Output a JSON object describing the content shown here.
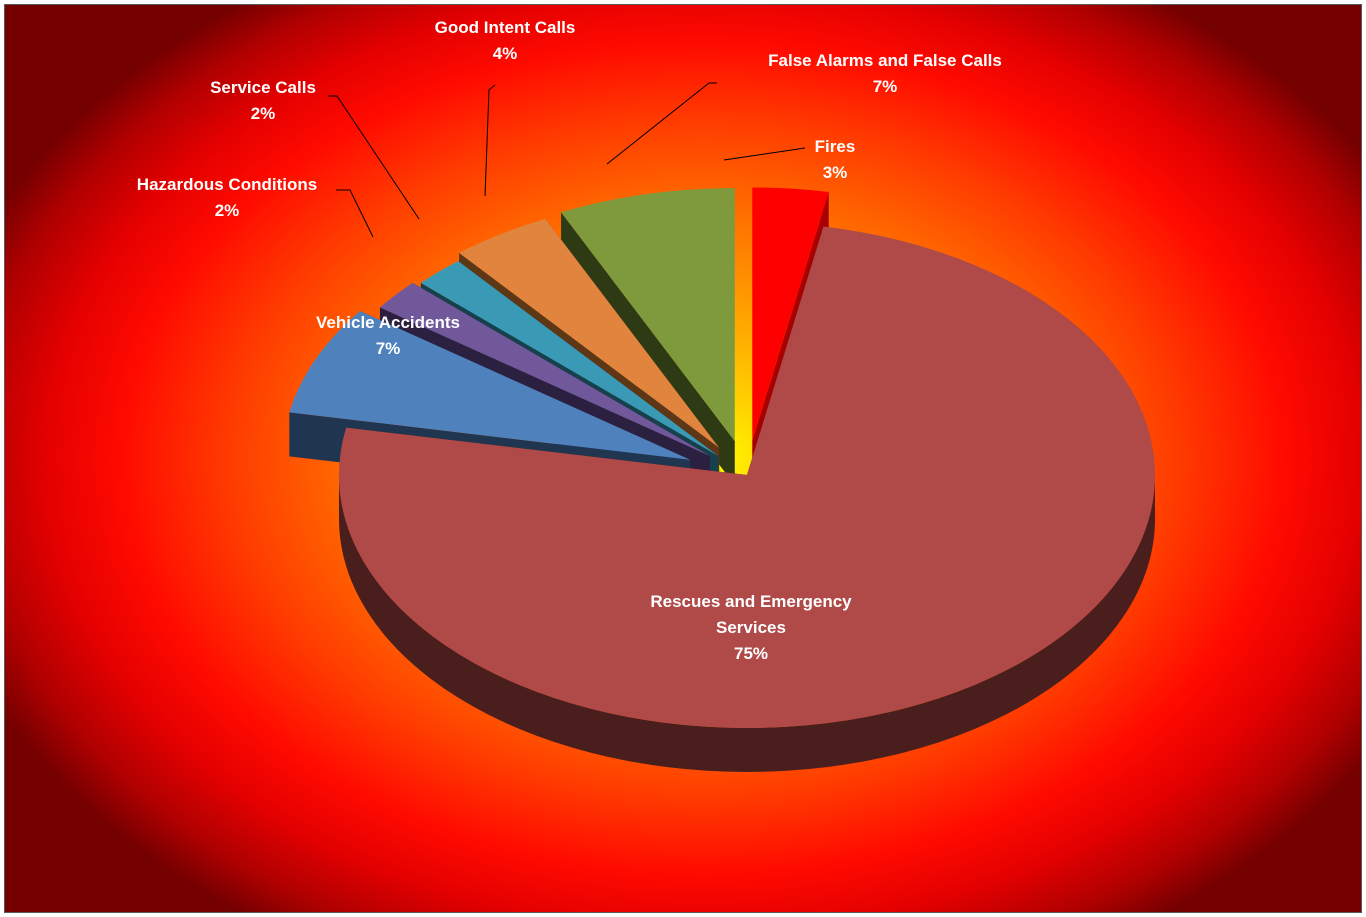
{
  "chart_data": {
    "type": "pie",
    "variant": "3d-exploded",
    "legend": "none",
    "slices": [
      {
        "label": "Fires",
        "percent_label": "3%",
        "value": 3,
        "color": "#ff0000",
        "side_color": "#a80000"
      },
      {
        "label": "Rescues and Emergency Services",
        "percent_label": "75%",
        "value": 75,
        "color": "#b04a48",
        "side_color": "#4a1e1d"
      },
      {
        "label": "Vehicle Accidents",
        "percent_label": "7%",
        "value": 7,
        "color": "#4f81bd",
        "side_color": "#1f3550"
      },
      {
        "label": "Hazardous Conditions",
        "percent_label": "2%",
        "value": 2,
        "color": "#71589a",
        "side_color": "#2b2040"
      },
      {
        "label": "Service Calls",
        "percent_label": "2%",
        "value": 2,
        "color": "#3a9ab5",
        "side_color": "#16404c"
      },
      {
        "label": "Good Intent Calls",
        "percent_label": "4%",
        "value": 4,
        "color": "#e0843e",
        "side_color": "#5e3716"
      },
      {
        "label": "False Alarms and False Calls",
        "percent_label": "7%",
        "value": 7,
        "color": "#7e9a3c",
        "side_color": "#2e3a14"
      }
    ]
  }
}
